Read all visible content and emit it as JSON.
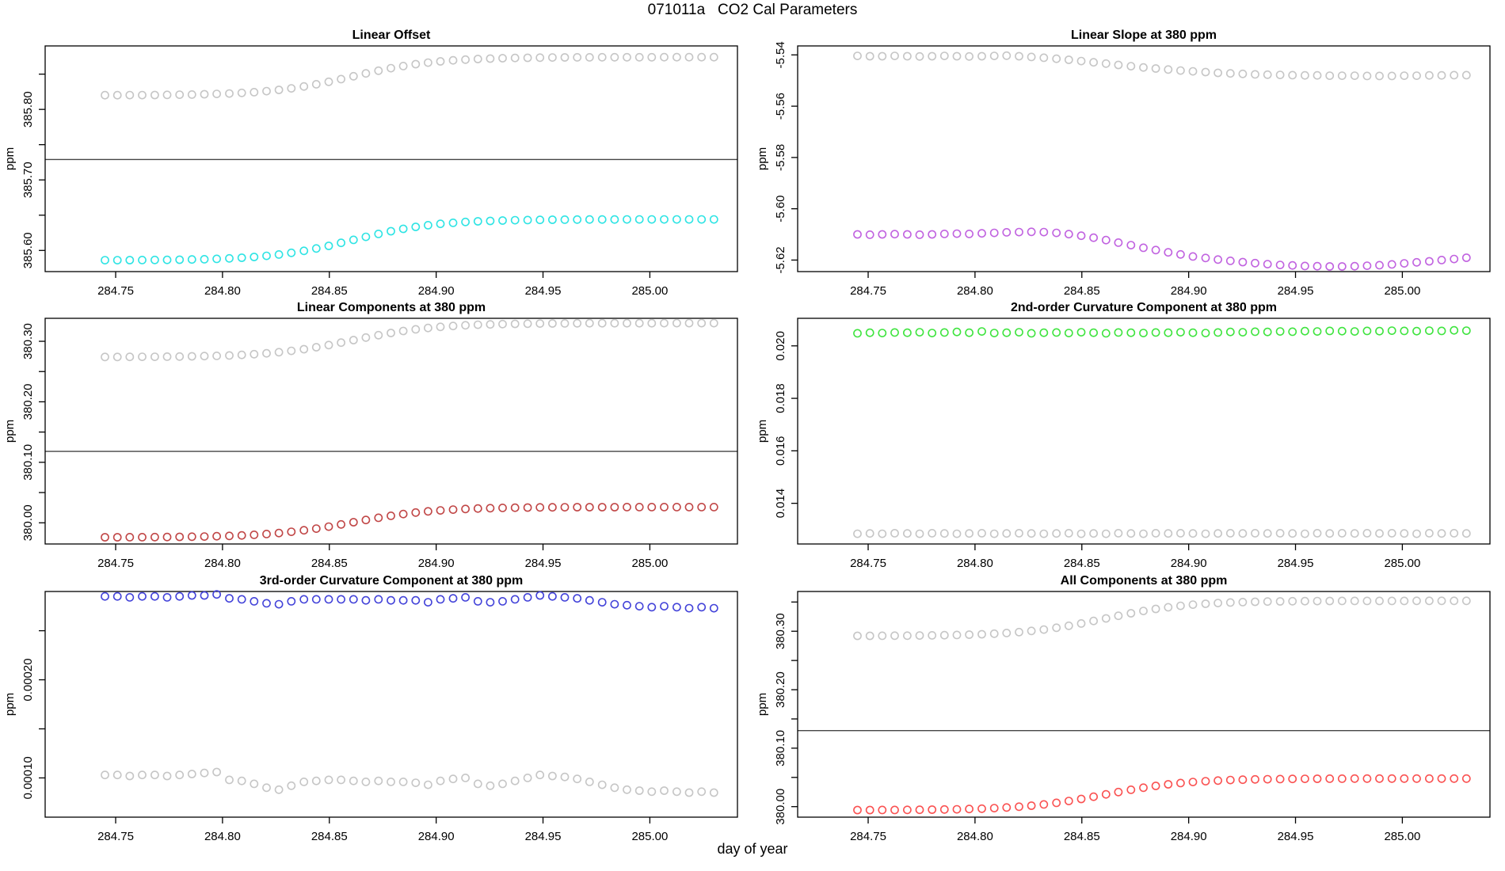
{
  "page": {
    "title": "071011a   CO2 Cal Parameters",
    "xlabel": "day of year"
  },
  "colors": {
    "gray": "#C6C6C6",
    "cyan": "#2FE4E4",
    "orchid": "#C163E0",
    "darkred": "#C14747",
    "green": "#3FE43F",
    "blue": "#4343D9",
    "red": "#FA5252",
    "axis": "#000000",
    "hline": "#444444"
  },
  "chart_data": {
    "type": "scatter",
    "xlim": [
      284.717,
      285.041
    ],
    "xticks": [
      {
        "v": 284.75,
        "label": "284.75"
      },
      {
        "v": 284.8,
        "label": "284.80"
      },
      {
        "v": 284.85,
        "label": "284.85"
      },
      {
        "v": 284.9,
        "label": "284.90"
      },
      {
        "v": 284.95,
        "label": "284.95"
      },
      {
        "v": 285.0,
        "label": "285.00"
      }
    ],
    "x": [
      284.745,
      284.7508,
      284.7566,
      284.7624,
      284.7683,
      284.7741,
      284.7799,
      284.7857,
      284.7915,
      284.7973,
      284.8032,
      284.809,
      284.8148,
      284.8206,
      284.8264,
      284.8322,
      284.8381,
      284.8439,
      284.8497,
      284.8555,
      284.8613,
      284.8671,
      284.873,
      284.8788,
      284.8846,
      284.8904,
      284.8962,
      284.902,
      284.9079,
      284.9137,
      284.9195,
      284.9253,
      284.9311,
      284.9369,
      284.9428,
      284.9486,
      284.9544,
      284.9602,
      284.966,
      284.9718,
      284.9777,
      284.9835,
      284.9893,
      284.9951,
      285.0009,
      285.0067,
      285.0126,
      285.0184,
      285.0242,
      285.03
    ],
    "sigmoid_shape": [
      0.003,
      0.003,
      0.005,
      0.006,
      0.008,
      0.011,
      0.015,
      0.02,
      0.027,
      0.036,
      0.047,
      0.063,
      0.083,
      0.109,
      0.142,
      0.182,
      0.232,
      0.289,
      0.354,
      0.426,
      0.5,
      0.574,
      0.646,
      0.711,
      0.769,
      0.818,
      0.858,
      0.891,
      0.917,
      0.937,
      0.953,
      0.964,
      0.973,
      0.98,
      0.985,
      0.989,
      0.992,
      0.994,
      0.996,
      0.997,
      0.998,
      0.998,
      0.999,
      0.999,
      0.999,
      1.0,
      1.0,
      1.0,
      1.0,
      1.0
    ],
    "subplots": [
      {
        "id": "linear-offset",
        "title": "Linear Offset",
        "ylabel": "ppm",
        "ylim": [
          385.57,
          385.89
        ],
        "yticks": [
          {
            "v": 385.6,
            "label": "385.60"
          },
          {
            "v": 385.65,
            "label": ""
          },
          {
            "v": 385.7,
            "label": "385.70"
          },
          {
            "v": 385.75,
            "label": ""
          },
          {
            "v": 385.8,
            "label": "385.80"
          },
          {
            "v": 385.85,
            "label": ""
          }
        ],
        "hline": 385.729,
        "series": [
          {
            "name": "gray-series",
            "color_key": "gray",
            "shape": "sigmoid",
            "y_start": 385.82,
            "y_end": 385.874
          },
          {
            "name": "cyan-series",
            "color_key": "cyan",
            "shape": "sigmoid",
            "y_start": 385.586,
            "y_end": 385.644
          }
        ]
      },
      {
        "id": "linear-slope-at-380-ppm",
        "title": "Linear Slope at 380 ppm",
        "ylabel": "ppm",
        "ylim": [
          -5.6245,
          -5.5365
        ],
        "yticks": [
          {
            "v": -5.62,
            "label": "-5.62"
          },
          {
            "v": -5.6,
            "label": "-5.60"
          },
          {
            "v": -5.58,
            "label": "-5.58"
          },
          {
            "v": -5.56,
            "label": "-5.56"
          },
          {
            "v": -5.54,
            "label": "-5.54"
          }
        ],
        "hline": null,
        "series": [
          {
            "name": "gray-series",
            "color_key": "gray",
            "y": [
              -5.5404,
              -5.5405,
              -5.5405,
              -5.5404,
              -5.5405,
              -5.5406,
              -5.5405,
              -5.5404,
              -5.5405,
              -5.5406,
              -5.5405,
              -5.5404,
              -5.5403,
              -5.5405,
              -5.5408,
              -5.5411,
              -5.5415,
              -5.5419,
              -5.5424,
              -5.5429,
              -5.5434,
              -5.5439,
              -5.5444,
              -5.5449,
              -5.5453,
              -5.5457,
              -5.5461,
              -5.5464,
              -5.5467,
              -5.547,
              -5.5472,
              -5.5474,
              -5.5476,
              -5.5477,
              -5.5478,
              -5.5479,
              -5.548,
              -5.548,
              -5.5481,
              -5.5481,
              -5.5481,
              -5.5482,
              -5.5482,
              -5.5482,
              -5.5481,
              -5.5481,
              -5.548,
              -5.548,
              -5.5479,
              -5.5479
            ]
          },
          {
            "name": "orchid-series",
            "color_key": "orchid",
            "y": [
              -5.61,
              -5.6101,
              -5.61,
              -5.6099,
              -5.61,
              -5.6101,
              -5.61,
              -5.6098,
              -5.6097,
              -5.6098,
              -5.6096,
              -5.6094,
              -5.6092,
              -5.6091,
              -5.609,
              -5.6091,
              -5.6094,
              -5.6099,
              -5.6105,
              -5.6113,
              -5.6122,
              -5.6132,
              -5.6142,
              -5.6152,
              -5.6161,
              -5.617,
              -5.6178,
              -5.6186,
              -5.6192,
              -5.6198,
              -5.6203,
              -5.6208,
              -5.6212,
              -5.6216,
              -5.6219,
              -5.6221,
              -5.6223,
              -5.6224,
              -5.6225,
              -5.6225,
              -5.6224,
              -5.6222,
              -5.622,
              -5.6217,
              -5.6213,
              -5.6209,
              -5.6205,
              -5.62,
              -5.6196,
              -5.6191
            ]
          }
        ]
      },
      {
        "id": "linear-components-at-380-ppm",
        "title": "Linear Components at 380 ppm",
        "ylabel": "ppm",
        "ylim": [
          379.965,
          380.338
        ],
        "yticks": [
          {
            "v": 380.0,
            "label": "380.00"
          },
          {
            "v": 380.05,
            "label": ""
          },
          {
            "v": 380.1,
            "label": "380.10"
          },
          {
            "v": 380.15,
            "label": ""
          },
          {
            "v": 380.2,
            "label": "380.20"
          },
          {
            "v": 380.25,
            "label": ""
          },
          {
            "v": 380.3,
            "label": "380.30"
          }
        ],
        "hline": 380.118,
        "series": [
          {
            "name": "gray-series",
            "color_key": "gray",
            "shape": "sigmoid",
            "y_start": 380.274,
            "y_end": 380.33
          },
          {
            "name": "darkred-series",
            "color_key": "darkred",
            "shape": "sigmoid",
            "y_start": 379.976,
            "y_end": 380.026
          }
        ]
      },
      {
        "id": "2nd-order-curvature-component-at-380-ppm",
        "title": "2nd-order Curvature Component at 380 ppm",
        "ylabel": "ppm",
        "ylim": [
          0.01245,
          0.02105
        ],
        "yticks": [
          {
            "v": 0.014,
            "label": "0.014"
          },
          {
            "v": 0.016,
            "label": "0.016"
          },
          {
            "v": 0.018,
            "label": "0.018"
          },
          {
            "v": 0.02,
            "label": "0.020"
          }
        ],
        "hline": null,
        "series": [
          {
            "name": "green-series",
            "color_key": "green",
            "y": [
              0.02048,
              0.0205,
              0.02049,
              0.02051,
              0.0205,
              0.02052,
              0.02049,
              0.02051,
              0.02053,
              0.0205,
              0.02055,
              0.02049,
              0.0205,
              0.02052,
              0.02048,
              0.0205,
              0.02051,
              0.02049,
              0.02052,
              0.0205,
              0.02048,
              0.02051,
              0.0205,
              0.02049,
              0.02051,
              0.0205,
              0.02052,
              0.0205,
              0.02049,
              0.02051,
              0.02053,
              0.02052,
              0.02054,
              0.02053,
              0.02055,
              0.02054,
              0.02056,
              0.02055,
              0.02057,
              0.02056,
              0.02055,
              0.02057,
              0.02056,
              0.02058,
              0.02057,
              0.02056,
              0.02058,
              0.02057,
              0.02059,
              0.02058
            ]
          },
          {
            "name": "gray-series",
            "color_key": "gray",
            "y": [
              0.01284,
              0.01285,
              0.01284,
              0.01286,
              0.01285,
              0.01284,
              0.01286,
              0.01285,
              0.01284,
              0.01285,
              0.01286,
              0.01284,
              0.01285,
              0.01286,
              0.01285,
              0.01284,
              0.01285,
              0.01286,
              0.01284,
              0.01285,
              0.01284,
              0.01286,
              0.01285,
              0.01284,
              0.01286,
              0.01285,
              0.01286,
              0.01285,
              0.01284,
              0.01285,
              0.01286,
              0.01285,
              0.01286,
              0.01285,
              0.01286,
              0.01285,
              0.01284,
              0.01286,
              0.01285,
              0.01286,
              0.01285,
              0.01286,
              0.01285,
              0.01286,
              0.01285,
              0.01284,
              0.01286,
              0.01285,
              0.01286,
              0.01285
            ]
          }
        ]
      },
      {
        "id": "3rd-order-curvature-component-at-380-ppm",
        "title": "3rd-order Curvature Component at 380 ppm",
        "ylabel": "ppm",
        "ylim": [
          6e-05,
          0.00029
        ],
        "yticks": [
          {
            "v": 0.0001,
            "label": "0.00010"
          },
          {
            "v": 0.00015,
            "label": ""
          },
          {
            "v": 0.0002,
            "label": "0.00020"
          },
          {
            "v": 0.00025,
            "label": ""
          }
        ],
        "hline": null,
        "series": [
          {
            "name": "blue-series",
            "color_key": "blue",
            "y": [
              0.000285,
              0.000285,
              0.000284,
              0.000285,
              0.000285,
              0.000284,
              0.000285,
              0.000286,
              0.000286,
              0.000287,
              0.000283,
              0.000282,
              0.00028,
              0.000278,
              0.000277,
              0.00028,
              0.000282,
              0.000282,
              0.000282,
              0.000282,
              0.000282,
              0.000281,
              0.000282,
              0.000281,
              0.000281,
              0.000281,
              0.000279,
              0.000282,
              0.000283,
              0.000284,
              0.00028,
              0.000279,
              0.00028,
              0.000282,
              0.000284,
              0.000286,
              0.000285,
              0.000284,
              0.000283,
              0.000281,
              0.000279,
              0.000277,
              0.000276,
              0.000275,
              0.000274,
              0.000275,
              0.000274,
              0.000273,
              0.000274,
              0.000273
            ]
          },
          {
            "name": "gray-series",
            "color_key": "gray",
            "y": [
              0.000103,
              0.000103,
              0.000102,
              0.000103,
              0.000103,
              0.000102,
              0.000103,
              0.000104,
              0.000105,
              0.000106,
              9.8e-05,
              9.7e-05,
              9.4e-05,
              9e-05,
              8.8e-05,
              9.2e-05,
              9.6e-05,
              9.7e-05,
              9.8e-05,
              9.8e-05,
              9.7e-05,
              9.6e-05,
              9.7e-05,
              9.6e-05,
              9.6e-05,
              9.5e-05,
              9.3e-05,
              9.7e-05,
              9.9e-05,
              0.0001,
              9.4e-05,
              9.2e-05,
              9.4e-05,
              9.7e-05,
              0.0001,
              0.000103,
              0.000102,
              0.000101,
              9.9e-05,
              9.6e-05,
              9.3e-05,
              9e-05,
              8.8e-05,
              8.7e-05,
              8.6e-05,
              8.7e-05,
              8.6e-05,
              8.5e-05,
              8.6e-05,
              8.5e-05
            ]
          }
        ]
      },
      {
        "id": "all-components-at-380-ppm",
        "title": "All Components at 380 ppm",
        "ylabel": "ppm",
        "ylim": [
          379.982,
          380.368
        ],
        "yticks": [
          {
            "v": 380.0,
            "label": "380.00"
          },
          {
            "v": 380.05,
            "label": ""
          },
          {
            "v": 380.1,
            "label": "380.10"
          },
          {
            "v": 380.15,
            "label": ""
          },
          {
            "v": 380.2,
            "label": "380.20"
          },
          {
            "v": 380.25,
            "label": ""
          },
          {
            "v": 380.3,
            "label": "380.30"
          },
          {
            "v": 380.35,
            "label": ""
          }
        ],
        "hline": 380.13,
        "series": [
          {
            "name": "gray-series",
            "color_key": "gray",
            "shape": "sigmoid",
            "y_start": 380.292,
            "y_end": 380.352
          },
          {
            "name": "red-series",
            "color_key": "red",
            "shape": "sigmoid",
            "y_start": 379.994,
            "y_end": 380.048
          }
        ]
      }
    ]
  }
}
